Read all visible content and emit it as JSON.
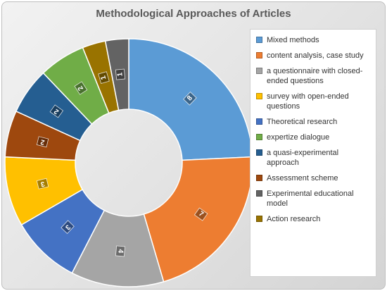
{
  "chart_data": {
    "type": "pie",
    "subtype": "doughnut",
    "title": "Methodological Approaches of Articles",
    "legend_position": "right",
    "categories": [
      "Mixed methods",
      "content analysis, case study",
      "a questionnaire with closed-ended questions",
      "survey with open-ended questions",
      "Theoretical research",
      "expertize dialogue",
      "a quasi-experimental approach",
      "Assessment scheme",
      "Experimental educational model",
      "Action research"
    ],
    "legend_order": [
      "Mixed methods",
      "content analysis, case study",
      "a questionnaire with closed-ended questions",
      "survey with open-ended questions",
      "Theoretical research",
      "expertize dialogue",
      "a quasi-experimental approach",
      "Assessment scheme",
      "Experimental educational model",
      "Action research"
    ],
    "slices": [
      {
        "label": "Mixed methods",
        "value": 8,
        "data_label": "8",
        "color": "#5b9bd5"
      },
      {
        "label": "content analysis, case study",
        "value": 7,
        "data_label": "7",
        "color": "#ed7d31"
      },
      {
        "label": "a questionnaire with closed-ended questions",
        "value": 4,
        "data_label": "4",
        "color": "#a5a5a5"
      },
      {
        "label": "Theoretical research",
        "value": 3,
        "data_label": "3",
        "color": "#4472c4"
      },
      {
        "label": "survey with open-ended questions",
        "value": 3,
        "data_label": "3",
        "color": "#ffc000"
      },
      {
        "label": "Assessment scheme",
        "value": 2,
        "data_label": "2",
        "color": "#9e480e"
      },
      {
        "label": "a quasi-experimental approach",
        "value": 2,
        "data_label": "2",
        "color": "#255e91"
      },
      {
        "label": "expertize dialogue",
        "value": 2,
        "data_label": "2",
        "color": "#70ad47"
      },
      {
        "label": "Action research",
        "value": 1,
        "data_label": "1",
        "color": "#997300"
      },
      {
        "label": "Experimental educational model",
        "value": 1,
        "data_label": "1",
        "color": "#636363"
      }
    ]
  }
}
